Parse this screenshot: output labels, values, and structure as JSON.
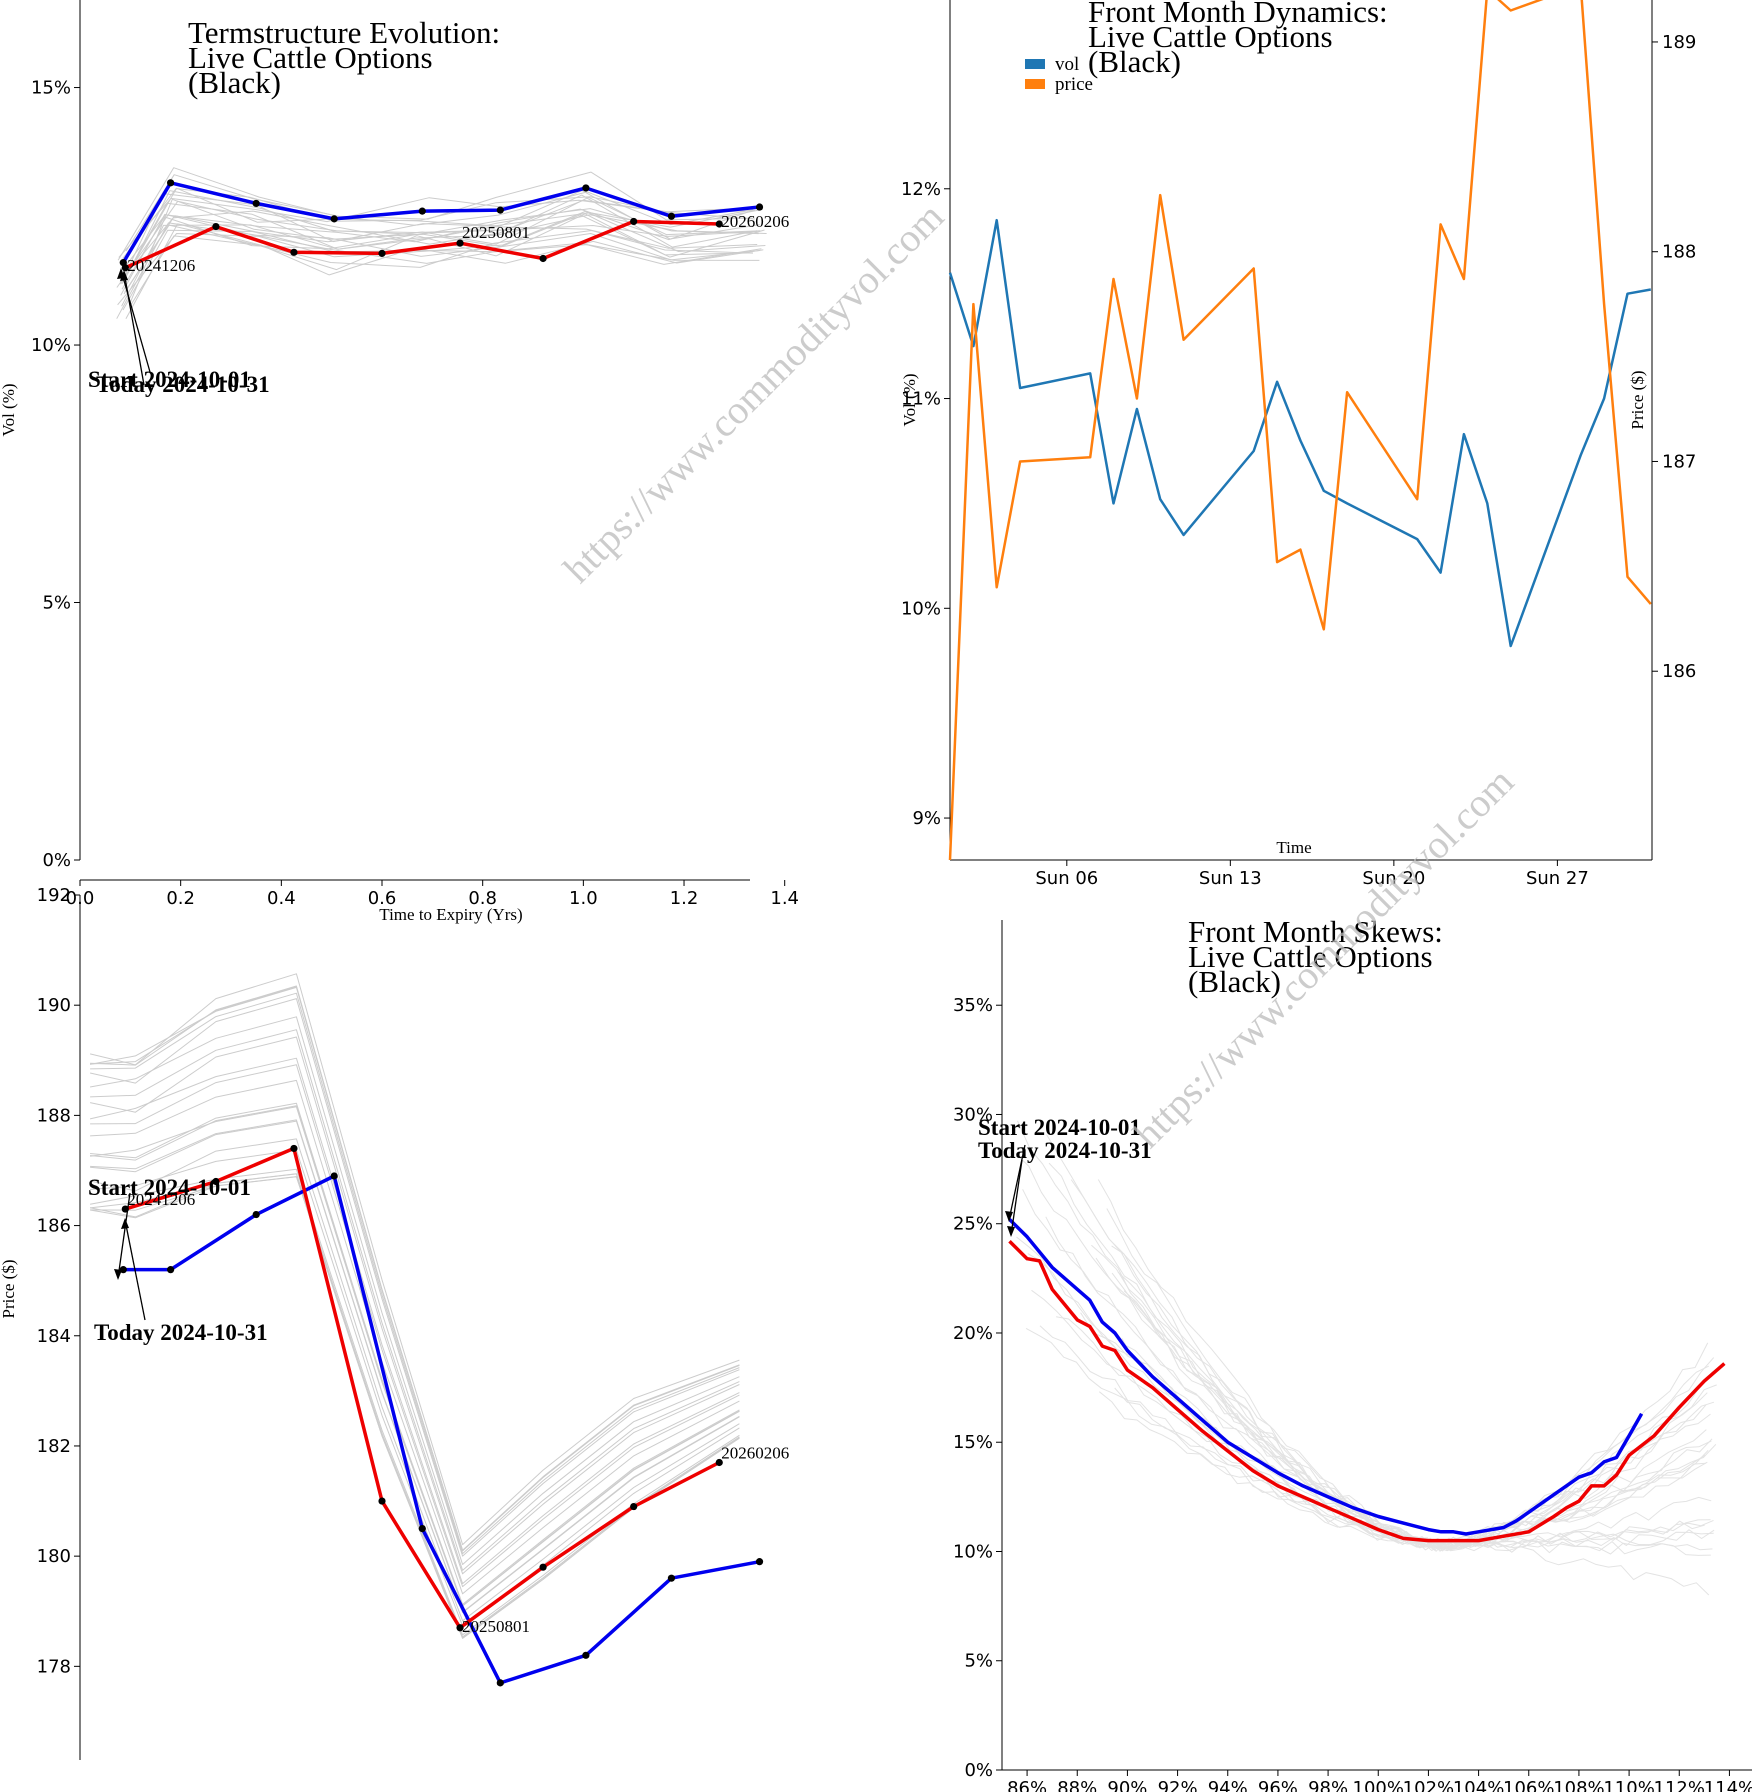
{
  "watermark": "https://www.commodityvol.com",
  "chart_data": [
    {
      "id": "term",
      "type": "line",
      "title": [
        "Termstructure Evolution:",
        "Live Cattle Options",
        "(Black)"
      ],
      "xlabel": "Time to Expiry (Yrs)",
      "ylabel": "Vol (%)",
      "xlim": [
        0,
        1.49
      ],
      "ylim": [
        0,
        16.7
      ],
      "xticks": [
        0,
        0.2,
        0.4,
        0.6,
        0.8,
        1.0,
        1.2,
        1.4
      ],
      "xtick_labels": [
        "0.0",
        "0.2",
        "0.4",
        "0.6",
        "0.8",
        "1.0",
        "1.2",
        "1.4"
      ],
      "yticks": [
        0,
        5,
        10,
        15
      ],
      "ytick_labels": [
        "0%",
        "5%",
        "10%",
        "15%"
      ],
      "series": [
        {
          "name": "Start 2024-10-01",
          "color": "#0000ee",
          "x": [
            0.086,
            0.18,
            0.35,
            0.505,
            0.68,
            0.835,
            1.005,
            1.175,
            1.35
          ],
          "y": [
            11.6,
            13.15,
            12.75,
            12.45,
            12.6,
            12.62,
            13.05,
            12.5,
            12.68
          ]
        },
        {
          "name": "Today 2024-10-31",
          "color": "#ee0000",
          "x": [
            0.09,
            0.27,
            0.425,
            0.6,
            0.755,
            0.92,
            1.1,
            1.27
          ],
          "y": [
            11.5,
            12.3,
            11.8,
            11.78,
            11.98,
            11.68,
            12.4,
            12.35
          ]
        }
      ],
      "point_labels": [
        {
          "text": "20241206",
          "x": 0.09,
          "y": 11.5
        },
        {
          "text": "20250801",
          "x": 0.755,
          "y": 11.98
        },
        {
          "text": "20260206",
          "x": 1.27,
          "y": 12.35
        }
      ],
      "annotations": [
        "Start 2024-10-01",
        "Today 2024-10-31"
      ]
    },
    {
      "id": "front",
      "type": "line",
      "title": [
        "Front Month Dynamics:",
        "Live Cattle Options",
        "(Black)"
      ],
      "xlabel": "Time",
      "ylabel": "Vol (%)",
      "y2label": "Price ($)",
      "xlim": [
        1,
        31.05
      ],
      "ylim": [
        8.8,
        12.9
      ],
      "y2lim": [
        185.1,
        189.2
      ],
      "xticks": [
        6,
        13,
        20,
        27
      ],
      "xtick_labels": [
        "Sun 06",
        "Sun 13",
        "Sun 20",
        "Sun 27"
      ],
      "yticks": [
        9,
        10,
        11,
        12
      ],
      "ytick_labels": [
        "9%",
        "10%",
        "11%",
        "12%"
      ],
      "y2ticks": [
        186,
        187,
        188,
        189
      ],
      "y2tick_labels": [
        "186",
        "187",
        "188",
        "189"
      ],
      "legend": [
        "vol",
        "price"
      ],
      "series": [
        {
          "name": "vol",
          "color": "#1f77b4",
          "axis": "left",
          "x": [
            1,
            2,
            3,
            4,
            7,
            8,
            9,
            10,
            11,
            14,
            15,
            16,
            17,
            18,
            21,
            22,
            23,
            24,
            25,
            28,
            29,
            30,
            31
          ],
          "y": [
            11.6,
            11.25,
            11.85,
            11.05,
            11.12,
            10.5,
            10.95,
            10.52,
            10.35,
            10.75,
            11.08,
            10.8,
            10.56,
            10.5,
            10.33,
            10.17,
            10.83,
            10.5,
            9.82,
            10.73,
            11.0,
            11.5,
            11.52
          ]
        },
        {
          "name": "price",
          "color": "#ff7f0e",
          "axis": "right",
          "x": [
            1,
            2,
            3,
            4,
            7,
            8,
            9,
            10,
            11,
            14,
            15,
            16,
            17,
            18,
            21,
            22,
            23,
            24,
            25,
            28,
            29,
            30,
            31
          ],
          "y": [
            185.1,
            187.75,
            186.4,
            187.0,
            187.02,
            187.87,
            187.3,
            188.27,
            187.58,
            187.92,
            186.52,
            186.58,
            186.2,
            187.33,
            186.82,
            188.13,
            187.87,
            189.25,
            189.15,
            189.27,
            187.75,
            186.45,
            186.32
          ]
        }
      ]
    },
    {
      "id": "price",
      "type": "line",
      "title": [],
      "xlabel": "",
      "ylabel": "Price ($)",
      "xlim": [
        0,
        1.49
      ],
      "ylim": [
        176.3,
        192
      ],
      "yticks": [
        178,
        180,
        182,
        184,
        186,
        188,
        190,
        192
      ],
      "ytick_labels": [
        "178",
        "180",
        "182",
        "184",
        "186",
        "188",
        "190",
        "192"
      ],
      "series": [
        {
          "name": "Start 2024-10-01",
          "color": "#0000ee",
          "x": [
            0.086,
            0.18,
            0.35,
            0.505,
            0.68,
            0.835,
            1.005,
            1.175,
            1.35
          ],
          "y": [
            185.2,
            185.2,
            186.2,
            186.9,
            180.5,
            177.7,
            178.2,
            179.6,
            179.9
          ]
        },
        {
          "name": "Today 2024-10-31",
          "color": "#ee0000",
          "x": [
            0.09,
            0.27,
            0.425,
            0.6,
            0.755,
            0.92,
            1.1,
            1.27
          ],
          "y": [
            186.3,
            186.8,
            187.4,
            181.0,
            178.7,
            179.8,
            180.9,
            181.7
          ]
        }
      ],
      "point_labels": [
        {
          "text": "20241206",
          "x": 0.09,
          "y": 186.3
        },
        {
          "text": "20250801",
          "x": 0.755,
          "y": 178.7
        },
        {
          "text": "20260206",
          "x": 1.27,
          "y": 181.7
        }
      ],
      "annotations": [
        "Start 2024-10-01",
        "Today 2024-10-31"
      ]
    },
    {
      "id": "skew",
      "type": "line",
      "title": [
        "Front Month Skews:",
        "Live Cattle Options",
        "(Black)"
      ],
      "xlabel": "",
      "ylabel": "",
      "xlim": [
        85,
        114.9
      ],
      "ylim": [
        0,
        38.9
      ],
      "xticks": [
        86,
        88,
        90,
        92,
        94,
        96,
        98,
        100,
        102,
        104,
        106,
        108,
        110,
        112,
        114
      ],
      "xtick_labels": [
        "86%",
        "88%",
        "90%",
        "92%",
        "94%",
        "96%",
        "98%",
        "100%",
        "102%",
        "104%",
        "106%",
        "108%",
        "110%",
        "112%",
        "114%"
      ],
      "yticks": [
        0,
        5,
        10,
        15,
        20,
        25,
        30,
        35
      ],
      "ytick_labels": [
        "0%",
        "5%",
        "10%",
        "15%",
        "20%",
        "25%",
        "30%",
        "35%"
      ],
      "series": [
        {
          "name": "Start 2024-10-01",
          "color": "#0000ee",
          "x": [
            85.3,
            86,
            87,
            88,
            88.5,
            89,
            89.5,
            90,
            91,
            92,
            93,
            94,
            95,
            96,
            97,
            98,
            99,
            100,
            101,
            102,
            102.5,
            103,
            103.5,
            104,
            105,
            105.5,
            106,
            106.5,
            107,
            107.5,
            108,
            108.5,
            109,
            109.5,
            110,
            110.5
          ],
          "y": [
            25.2,
            24.4,
            23.0,
            22.0,
            21.5,
            20.5,
            20.0,
            19.2,
            18.0,
            17.0,
            16.0,
            15.0,
            14.3,
            13.6,
            13.0,
            12.5,
            12.0,
            11.6,
            11.3,
            11.0,
            10.9,
            10.9,
            10.8,
            10.9,
            11.1,
            11.4,
            11.8,
            12.2,
            12.6,
            13.0,
            13.4,
            13.6,
            14.1,
            14.3,
            15.3,
            16.3
          ]
        },
        {
          "name": "Today 2024-10-31",
          "color": "#ee0000",
          "x": [
            85.3,
            86,
            86.5,
            87,
            88,
            88.5,
            89,
            89.5,
            90,
            91,
            92,
            93,
            94,
            95,
            96,
            97,
            98,
            99,
            100,
            101,
            102,
            103,
            104,
            105,
            106,
            107,
            107.5,
            108,
            108.5,
            109,
            109.5,
            110,
            111,
            112,
            113,
            113.8
          ],
          "y": [
            24.2,
            23.4,
            23.3,
            22.0,
            20.6,
            20.3,
            19.4,
            19.2,
            18.3,
            17.5,
            16.5,
            15.5,
            14.6,
            13.7,
            13.0,
            12.5,
            12.0,
            11.5,
            11.0,
            10.6,
            10.5,
            10.5,
            10.5,
            10.7,
            10.9,
            11.6,
            12.0,
            12.3,
            13.0,
            13.0,
            13.5,
            14.4,
            15.3,
            16.6,
            17.8,
            18.6
          ]
        }
      ],
      "annotations": [
        "Start 2024-10-01",
        "Today 2024-10-31"
      ]
    }
  ]
}
